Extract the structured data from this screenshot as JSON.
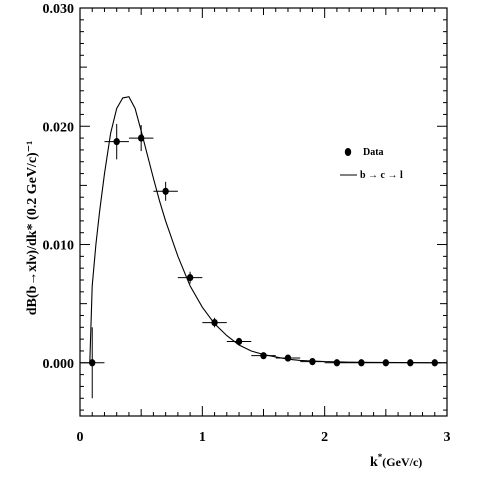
{
  "chart_data": {
    "type": "scatter",
    "title": "",
    "xlabel": "k* (GeV/c)",
    "ylabel": "dB(b→xlν)/dk* (0.2 GeV/c)⁻¹",
    "xlim": [
      0,
      3
    ],
    "ylim": [
      -0.0045,
      0.03
    ],
    "x_ticks": [
      {
        "value": 0,
        "label": "0"
      },
      {
        "value": 1,
        "label": "1"
      },
      {
        "value": 2,
        "label": "2"
      },
      {
        "value": 3,
        "label": "3"
      }
    ],
    "y_ticks": [
      {
        "value": 0.0,
        "label": "0.000"
      },
      {
        "value": 0.01,
        "label": "0.010"
      },
      {
        "value": 0.02,
        "label": "0.020"
      },
      {
        "value": 0.03,
        "label": "0.030"
      }
    ],
    "legend_position": "right",
    "series": [
      {
        "name": "Data",
        "kind": "points",
        "color": "#000000",
        "points": [
          {
            "x": 0.1,
            "y": 0.0,
            "xerr": 0.1,
            "yerr": 0.003
          },
          {
            "x": 0.3,
            "y": 0.0187,
            "xerr": 0.1,
            "yerr": 0.0015
          },
          {
            "x": 0.5,
            "y": 0.019,
            "xerr": 0.1,
            "yerr": 0.0011
          },
          {
            "x": 0.7,
            "y": 0.0145,
            "xerr": 0.1,
            "yerr": 0.0008
          },
          {
            "x": 0.9,
            "y": 0.0072,
            "xerr": 0.1,
            "yerr": 0.0005
          },
          {
            "x": 1.1,
            "y": 0.0034,
            "xerr": 0.1,
            "yerr": 0.0004
          },
          {
            "x": 1.3,
            "y": 0.0018,
            "xerr": 0.1,
            "yerr": 0.0003
          },
          {
            "x": 1.5,
            "y": 0.0006,
            "xerr": 0.1,
            "yerr": 0.0002
          },
          {
            "x": 1.7,
            "y": 0.0004,
            "xerr": 0.1,
            "yerr": 0.0002
          },
          {
            "x": 1.9,
            "y": 0.0001,
            "xerr": 0.1,
            "yerr": 0.0001
          },
          {
            "x": 2.1,
            "y": 0.0,
            "xerr": 0.1,
            "yerr": 0.0001
          },
          {
            "x": 2.3,
            "y": 0.0,
            "xerr": 0.1,
            "yerr": 0.0001
          },
          {
            "x": 2.5,
            "y": 0.0,
            "xerr": 0.1,
            "yerr": 0.0001
          },
          {
            "x": 2.7,
            "y": 0.0,
            "xerr": 0.1,
            "yerr": 0.0001
          },
          {
            "x": 2.9,
            "y": 0.0,
            "xerr": 0.1,
            "yerr": 0.0001
          }
        ]
      },
      {
        "name": "b → c → l",
        "kind": "line",
        "color": "#000000",
        "x": [
          0.08,
          0.1,
          0.13,
          0.16,
          0.2,
          0.25,
          0.3,
          0.35,
          0.4,
          0.45,
          0.5,
          0.55,
          0.6,
          0.65,
          0.7,
          0.8,
          0.9,
          1.0,
          1.1,
          1.2,
          1.3,
          1.4,
          1.5,
          1.6,
          1.7,
          1.8,
          1.9,
          2.0,
          2.2,
          2.4,
          2.6,
          2.8,
          2.95
        ],
        "y": [
          0.0,
          0.0065,
          0.01,
          0.0128,
          0.016,
          0.0194,
          0.0215,
          0.0224,
          0.0225,
          0.0215,
          0.0196,
          0.0176,
          0.0156,
          0.0137,
          0.012,
          0.009,
          0.0065,
          0.0047,
          0.0033,
          0.0023,
          0.0015,
          0.001,
          0.0007,
          0.0005,
          0.0003,
          0.0002,
          0.00015,
          0.0001,
          5e-05,
          3e-05,
          2e-05,
          1e-05,
          0.0
        ]
      }
    ]
  }
}
